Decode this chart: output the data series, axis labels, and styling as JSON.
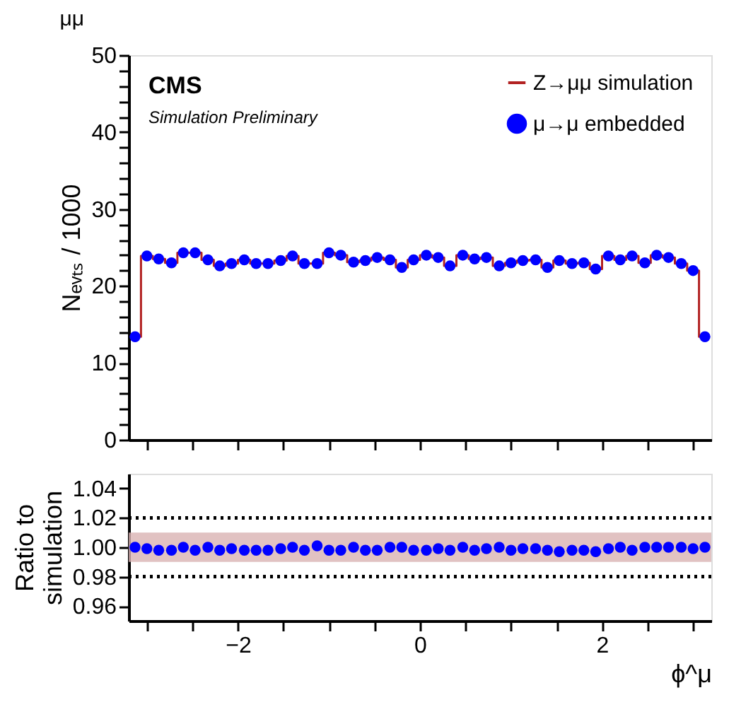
{
  "chart_data": [
    {
      "type": "step",
      "title": "μμ",
      "ylabel": "Nₑᵥₜₛ / 1000",
      "annotations": [
        "CMS",
        "Simulation Preliminary"
      ],
      "x": [
        -3.13,
        -3.0,
        -2.87,
        -2.73,
        -2.6,
        -2.47,
        -2.33,
        -2.2,
        -2.07,
        -1.93,
        -1.8,
        -1.67,
        -1.53,
        -1.4,
        -1.27,
        -1.13,
        -1.0,
        -0.87,
        -0.73,
        -0.6,
        -0.47,
        -0.33,
        -0.2,
        -0.07,
        0.07,
        0.2,
        0.33,
        0.47,
        0.6,
        0.73,
        0.87,
        1.0,
        1.13,
        1.27,
        1.4,
        1.53,
        1.67,
        1.8,
        1.93,
        2.07,
        2.2,
        2.33,
        2.47,
        2.6,
        2.73,
        2.87,
        3.0,
        3.13
      ],
      "series": [
        {
          "name": "Z→μμ simulation",
          "type": "step",
          "marker": "none",
          "color": "#b22222",
          "values": [
            13.4,
            23.9,
            23.5,
            23.0,
            24.3,
            24.3,
            23.4,
            22.6,
            22.9,
            23.4,
            22.9,
            22.9,
            23.3,
            23.9,
            22.9,
            22.9,
            24.3,
            24.0,
            23.1,
            23.3,
            23.7,
            23.4,
            22.4,
            23.4,
            24.0,
            23.7,
            22.6,
            24.0,
            23.5,
            23.7,
            22.6,
            23.0,
            23.3,
            23.4,
            22.4,
            23.3,
            22.9,
            23.0,
            22.2,
            23.9,
            23.4,
            23.9,
            23.0,
            24.0,
            23.7,
            22.9,
            22.0,
            13.4
          ]
        },
        {
          "name": "μ→μ embedded",
          "type": "scatter",
          "marker": "circle",
          "color": "#0000ff",
          "values": [
            13.4,
            23.9,
            23.5,
            23.0,
            24.3,
            24.3,
            23.4,
            22.6,
            22.9,
            23.4,
            22.9,
            22.9,
            23.3,
            23.9,
            22.9,
            22.9,
            24.3,
            24.0,
            23.1,
            23.3,
            23.7,
            23.4,
            22.4,
            23.4,
            24.0,
            23.7,
            22.6,
            24.0,
            23.5,
            23.7,
            22.6,
            23.0,
            23.3,
            23.4,
            22.4,
            23.3,
            22.9,
            23.0,
            22.2,
            23.9,
            23.4,
            23.9,
            23.0,
            24.0,
            23.7,
            22.9,
            22.0,
            13.4
          ]
        }
      ],
      "xlim": [
        -3.2,
        3.2
      ],
      "xticks": [
        {
          "value": -3,
          "label": null
        },
        {
          "value": -2.5,
          "label": null
        },
        -2,
        {
          "value": -1.5,
          "label": null
        },
        {
          "value": -1,
          "label": null
        },
        {
          "value": -0.5,
          "label": null
        },
        0,
        {
          "value": 0.5,
          "label": null
        },
        {
          "value": 1,
          "label": null
        },
        {
          "value": 1.5,
          "label": null
        },
        2,
        {
          "value": 2.5,
          "label": null
        },
        {
          "value": 3,
          "label": null
        }
      ],
      "ylim": [
        0,
        50
      ],
      "yticks": [
        0,
        {
          "value": 2,
          "label": null
        },
        {
          "value": 4,
          "label": null
        },
        {
          "value": 6,
          "label": null
        },
        {
          "value": 8,
          "label": null
        },
        10,
        {
          "value": 12,
          "label": null
        },
        {
          "value": 14,
          "label": null
        },
        {
          "value": 16,
          "label": null
        },
        {
          "value": 18,
          "label": null
        },
        20,
        {
          "value": 22,
          "label": null
        },
        {
          "value": 24,
          "label": null
        },
        {
          "value": 26,
          "label": null
        },
        {
          "value": 28,
          "label": null
        },
        30,
        {
          "value": 32,
          "label": null
        },
        {
          "value": 34,
          "label": null
        },
        {
          "value": 36,
          "label": null
        },
        {
          "value": 38,
          "label": null
        },
        40,
        {
          "value": 42,
          "label": null
        },
        {
          "value": 44,
          "label": null
        },
        {
          "value": 46,
          "label": null
        },
        {
          "value": 48,
          "label": null
        },
        50
      ],
      "legend": "top right",
      "tick_labels": "y"
    },
    {
      "type": "scatter",
      "xlabel": "ϕ^μ",
      "ylabel": "Ratio to\nsimulation",
      "x": [
        -3.13,
        -3.0,
        -2.87,
        -2.73,
        -2.6,
        -2.47,
        -2.33,
        -2.2,
        -2.07,
        -1.93,
        -1.8,
        -1.67,
        -1.53,
        -1.4,
        -1.27,
        -1.13,
        -1.0,
        -0.87,
        -0.73,
        -0.6,
        -0.47,
        -0.33,
        -0.2,
        -0.07,
        0.07,
        0.2,
        0.33,
        0.47,
        0.6,
        0.73,
        0.87,
        1.0,
        1.13,
        1.27,
        1.4,
        1.53,
        1.67,
        1.8,
        1.93,
        2.07,
        2.2,
        2.33,
        2.47,
        2.6,
        2.73,
        2.87,
        3.0,
        3.13
      ],
      "series": [
        {
          "color": "#0000ff",
          "marker": "circle",
          "values": [
            1.0,
            0.999,
            0.998,
            0.998,
            1.0,
            0.998,
            1.0,
            0.998,
            0.999,
            0.998,
            0.998,
            0.998,
            0.999,
            1.0,
            0.998,
            1.001,
            0.998,
            0.998,
            1.0,
            0.998,
            0.998,
            1.0,
            1.0,
            0.998,
            0.998,
            0.999,
            0.998,
            1.0,
            0.998,
            0.999,
            1.0,
            0.998,
            0.999,
            0.999,
            0.998,
            0.997,
            0.998,
            0.998,
            0.997,
            0.999,
            1.0,
            0.998,
            1.0,
            1.0,
            1.0,
            1.0,
            0.999,
            1.0
          ]
        }
      ],
      "bands": [
        {
          "axis": "y",
          "from": 0.99,
          "to": 1.01,
          "color": "#d9b3b3"
        }
      ],
      "ref_lines": [
        {
          "axis": "y",
          "value": 1.02,
          "color": "#000000",
          "line_style": "dotted"
        },
        {
          "axis": "y",
          "value": 0.98,
          "color": "#000000",
          "line_style": "dotted"
        }
      ],
      "xlim": [
        -3.2,
        3.2
      ],
      "xticks": [
        {
          "value": -3,
          "label": null
        },
        {
          "value": -2.5,
          "label": null
        },
        -2,
        {
          "value": -1.5,
          "label": null
        },
        {
          "value": -1,
          "label": null
        },
        {
          "value": -0.5,
          "label": null
        },
        0,
        {
          "value": 0.5,
          "label": null
        },
        {
          "value": 1,
          "label": null
        },
        {
          "value": 1.5,
          "label": null
        },
        2,
        {
          "value": 2.5,
          "label": null
        },
        {
          "value": 3,
          "label": null
        }
      ],
      "ylim": [
        0.95,
        1.05
      ],
      "yticks": [
        0.96,
        0.98,
        {
          "value": 1,
          "label": "1.00"
        },
        1.02,
        1.04
      ]
    }
  ]
}
